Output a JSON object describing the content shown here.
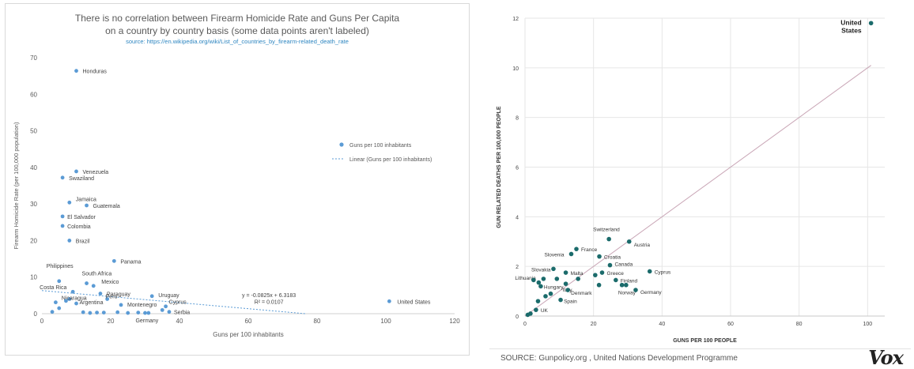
{
  "chart_data": [
    {
      "type": "scatter",
      "title": "There is no correlation between Firearm Homicide Rate and Guns Per Capita on a country by country basis (some data points aren't labeled)",
      "title_lines": [
        "There is no correlation between Firearm Homicide Rate and Guns Per Capita",
        "on a country by country basis (some data points aren't labeled)"
      ],
      "subtitle": "source: https://en.wikipedia.org/wiki/List_of_countries_by_firearm-related_death_rate",
      "xlabel": "Guns per 100 inhabitants",
      "ylabel": "Firearm Homicide Rate (per 100,000 population)",
      "xlim": [
        0,
        120
      ],
      "ylim": [
        0,
        70
      ],
      "x_ticks": [
        "0",
        "20",
        "40",
        "60",
        "80",
        "100",
        "120"
      ],
      "y_ticks": [
        "0",
        "10",
        "20",
        "30",
        "40",
        "50",
        "60",
        "70"
      ],
      "grid": false,
      "legend_position": "right",
      "series": [
        {
          "name": "Guns per 100 inhabitants",
          "color": "#5b9bd5",
          "points": [
            {
              "label": "Honduras",
              "x": 10,
              "y": 66.4
            },
            {
              "label": "Venezuela",
              "x": 10,
              "y": 38.9
            },
            {
              "label": "Swaziland",
              "x": 6,
              "y": 37.2
            },
            {
              "label": "Jamaica",
              "x": 8,
              "y": 30.4
            },
            {
              "label": "Guatemala",
              "x": 13,
              "y": 29.6
            },
            {
              "label": "El Salvador",
              "x": 6,
              "y": 26.6
            },
            {
              "label": "Colombia",
              "x": 6,
              "y": 24
            },
            {
              "label": "Brazil",
              "x": 8,
              "y": 20
            },
            {
              "label": "Panama",
              "x": 21,
              "y": 14.4
            },
            {
              "label": "South Africa",
              "x": 13,
              "y": 8.3
            },
            {
              "label": "Philippines",
              "x": 5,
              "y": 8.9
            },
            {
              "label": "Mexico",
              "x": 15,
              "y": 7.6
            },
            {
              "label": "Costa Rica",
              "x": 9,
              "y": 6
            },
            {
              "label": "Paraguay",
              "x": 17,
              "y": 5.5
            },
            {
              "label": "Nicaragua",
              "x": 8,
              "y": 4
            },
            {
              "label": "Peru",
              "x": 19,
              "y": 4
            },
            {
              "label": "Uruguay",
              "x": 32,
              "y": 4.8
            },
            {
              "label": "Argentina",
              "x": 10,
              "y": 2.8
            },
            {
              "label": "Montenegro",
              "x": 23,
              "y": 2.4
            },
            {
              "label": "Cyprus",
              "x": 36,
              "y": 2
            },
            {
              "label": "Serbia",
              "x": 37,
              "y": 0.5
            },
            {
              "label": "Germany",
              "x": 31,
              "y": 0.2
            },
            {
              "label": "United States",
              "x": 101,
              "y": 3.4
            },
            {
              "label": "",
              "x": 3,
              "y": 0.5
            },
            {
              "label": "",
              "x": 4,
              "y": 3.1
            },
            {
              "label": "",
              "x": 7,
              "y": 3.5
            },
            {
              "label": "",
              "x": 5,
              "y": 1.5
            },
            {
              "label": "",
              "x": 12,
              "y": 0.4
            },
            {
              "label": "",
              "x": 14,
              "y": 0.2
            },
            {
              "label": "",
              "x": 16,
              "y": 0.3
            },
            {
              "label": "",
              "x": 18,
              "y": 0.3
            },
            {
              "label": "",
              "x": 22,
              "y": 0.4
            },
            {
              "label": "",
              "x": 25,
              "y": 0.2
            },
            {
              "label": "",
              "x": 28,
              "y": 0.3
            },
            {
              "label": "",
              "x": 30,
              "y": 0.2
            },
            {
              "label": "",
              "x": 35,
              "y": 1
            }
          ]
        }
      ],
      "trendline": {
        "name": "Linear (Guns per 100 inhabitants)",
        "color": "#5b9bd5",
        "slope": -0.0825,
        "intercept": 6.3183,
        "equation": "y = -0.0825x + 6.3183",
        "r_squared": "R² = 0.0107"
      }
    },
    {
      "type": "scatter",
      "title": "",
      "xlabel": "GUNS PER 100 PEOPLE",
      "ylabel": "GUN RELATED DEATHS PER 100,000 PEOPLE",
      "xlim": [
        0,
        105
      ],
      "ylim": [
        0,
        12
      ],
      "x_ticks": [
        "0",
        "20",
        "40",
        "60",
        "80",
        "100"
      ],
      "y_ticks": [
        "0",
        "2",
        "4",
        "6",
        "8",
        "10",
        "12"
      ],
      "grid": true,
      "series": [
        {
          "name": "",
          "color": "#1b6b6b",
          "points": [
            {
              "label": "United States",
              "x": 101,
              "y": 11.8
            },
            {
              "label": "Switzerland",
              "x": 24.5,
              "y": 3.1
            },
            {
              "label": "Austria",
              "x": 30.4,
              "y": 3
            },
            {
              "label": "France",
              "x": 15,
              "y": 2.7
            },
            {
              "label": "Slovenia",
              "x": 13.5,
              "y": 2.5
            },
            {
              "label": "Croatia",
              "x": 21.7,
              "y": 2.4
            },
            {
              "label": "Canada",
              "x": 24.8,
              "y": 2.05
            },
            {
              "label": "Slovakia",
              "x": 8.3,
              "y": 1.9
            },
            {
              "label": "Malta",
              "x": 11.9,
              "y": 1.75
            },
            {
              "label": "Cyprus",
              "x": 36.4,
              "y": 1.8
            },
            {
              "label": "Greece",
              "x": 22.5,
              "y": 1.75
            },
            {
              "label": "Lithuania",
              "x": 5.4,
              "y": 1.5
            },
            {
              "label": "Finland",
              "x": 26.5,
              "y": 1.45
            },
            {
              "label": "Italy",
              "x": 11.9,
              "y": 1.3
            },
            {
              "label": "Hungary",
              "x": 4.6,
              "y": 1.2
            },
            {
              "label": "Norway",
              "x": 29.5,
              "y": 1.25
            },
            {
              "label": "Germany",
              "x": 32.3,
              "y": 1.05
            },
            {
              "label": "Denmark",
              "x": 12.5,
              "y": 1.05
            },
            {
              "label": "Spain",
              "x": 10.4,
              "y": 0.65
            },
            {
              "label": "UK",
              "x": 3.2,
              "y": 0.25
            },
            {
              "label": "",
              "x": 2.5,
              "y": 1.45
            },
            {
              "label": "",
              "x": 4,
              "y": 1.35
            },
            {
              "label": "",
              "x": 9.3,
              "y": 1.5
            },
            {
              "label": "",
              "x": 15.5,
              "y": 1.5
            },
            {
              "label": "",
              "x": 7.5,
              "y": 0.9
            },
            {
              "label": "",
              "x": 6,
              "y": 0.8
            },
            {
              "label": "",
              "x": 3.8,
              "y": 0.6
            },
            {
              "label": "",
              "x": 1.6,
              "y": 0.1
            },
            {
              "label": "",
              "x": 0.8,
              "y": 0.05
            },
            {
              "label": "",
              "x": 20.5,
              "y": 1.65
            },
            {
              "label": "",
              "x": 21.6,
              "y": 1.25
            },
            {
              "label": "",
              "x": 28.3,
              "y": 1.25
            }
          ]
        }
      ],
      "trendline": {
        "from": [
          0,
          0
        ],
        "to": [
          101,
          10.1
        ],
        "color": "#c9a6b6"
      }
    }
  ],
  "footer": {
    "source": "SOURCE: Gunpolicy.org , United Nations Development Programme",
    "logo": "Vox"
  }
}
